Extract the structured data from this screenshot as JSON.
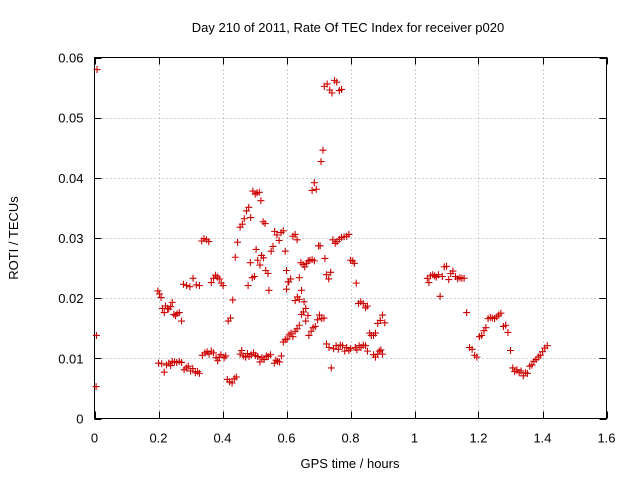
{
  "chart_data": {
    "type": "scatter",
    "title": "Day 210 of 2011, Rate Of TEC Index for receiver p020",
    "xlabel": "GPS time / hours",
    "ylabel": "ROTI / TECUs",
    "xlim": [
      0,
      1.6
    ],
    "ylim": [
      0,
      0.06
    ],
    "xticks": [
      0,
      0.2,
      0.4,
      0.6,
      0.8,
      1,
      1.2,
      1.4,
      1.6
    ],
    "xtick_labels": [
      "0",
      "0.2",
      "0.4",
      "0.6",
      "0.8",
      "1",
      "1.2",
      "1.4",
      "1.6"
    ],
    "yticks": [
      0,
      0.01,
      0.02,
      0.03,
      0.04,
      0.05,
      0.06
    ],
    "ytick_labels": [
      "0",
      "0.01",
      "0.02",
      "0.03",
      "0.04",
      "0.05",
      "0.06"
    ],
    "grid": true,
    "marker": "+",
    "color": "#cc0000",
    "points": [
      [
        0.008,
        0.058
      ],
      [
        0.006,
        0.0138
      ],
      [
        0.005,
        0.0053
      ],
      [
        0.198,
        0.0212
      ],
      [
        0.203,
        0.0207
      ],
      [
        0.208,
        0.0201
      ],
      [
        0.212,
        0.0183
      ],
      [
        0.218,
        0.0176
      ],
      [
        0.222,
        0.0187
      ],
      [
        0.228,
        0.0183
      ],
      [
        0.232,
        0.0182
      ],
      [
        0.238,
        0.0186
      ],
      [
        0.243,
        0.0193
      ],
      [
        0.248,
        0.0173
      ],
      [
        0.253,
        0.0171
      ],
      [
        0.258,
        0.0174
      ],
      [
        0.265,
        0.0176
      ],
      [
        0.272,
        0.0162
      ],
      [
        0.2,
        0.0092
      ],
      [
        0.21,
        0.0091
      ],
      [
        0.218,
        0.0077
      ],
      [
        0.225,
        0.0089
      ],
      [
        0.232,
        0.0092
      ],
      [
        0.238,
        0.0088
      ],
      [
        0.243,
        0.0095
      ],
      [
        0.25,
        0.0094
      ],
      [
        0.257,
        0.0093
      ],
      [
        0.265,
        0.0095
      ],
      [
        0.272,
        0.0093
      ],
      [
        0.28,
        0.0081
      ],
      [
        0.287,
        0.0084
      ],
      [
        0.293,
        0.0087
      ],
      [
        0.3,
        0.0079
      ],
      [
        0.307,
        0.0083
      ],
      [
        0.315,
        0.0076
      ],
      [
        0.322,
        0.0078
      ],
      [
        0.328,
        0.0075
      ],
      [
        0.278,
        0.0223
      ],
      [
        0.288,
        0.0221
      ],
      [
        0.298,
        0.0219
      ],
      [
        0.308,
        0.0233
      ],
      [
        0.318,
        0.0222
      ],
      [
        0.328,
        0.0221
      ],
      [
        0.335,
        0.0295
      ],
      [
        0.342,
        0.0299
      ],
      [
        0.35,
        0.0297
      ],
      [
        0.357,
        0.0294
      ],
      [
        0.337,
        0.0105
      ],
      [
        0.345,
        0.0109
      ],
      [
        0.352,
        0.0111
      ],
      [
        0.358,
        0.0107
      ],
      [
        0.365,
        0.0112
      ],
      [
        0.372,
        0.0109
      ],
      [
        0.38,
        0.0101
      ],
      [
        0.385,
        0.0096
      ],
      [
        0.39,
        0.0102
      ],
      [
        0.395,
        0.0106
      ],
      [
        0.365,
        0.0226
      ],
      [
        0.372,
        0.0233
      ],
      [
        0.378,
        0.0238
      ],
      [
        0.384,
        0.0235
      ],
      [
        0.39,
        0.0232
      ],
      [
        0.396,
        0.0225
      ],
      [
        0.402,
        0.0221
      ],
      [
        0.405,
        0.0101
      ],
      [
        0.41,
        0.0104
      ],
      [
        0.418,
        0.0162
      ],
      [
        0.425,
        0.0167
      ],
      [
        0.432,
        0.0197
      ],
      [
        0.415,
        0.0065
      ],
      [
        0.422,
        0.0061
      ],
      [
        0.43,
        0.0059
      ],
      [
        0.437,
        0.0066
      ],
      [
        0.443,
        0.0069
      ],
      [
        0.44,
        0.0268
      ],
      [
        0.447,
        0.0293
      ],
      [
        0.455,
        0.0318
      ],
      [
        0.462,
        0.0323
      ],
      [
        0.468,
        0.0332
      ],
      [
        0.475,
        0.0345
      ],
      [
        0.482,
        0.0351
      ],
      [
        0.488,
        0.0334
      ],
      [
        0.455,
        0.0107
      ],
      [
        0.46,
        0.0113
      ],
      [
        0.465,
        0.0104
      ],
      [
        0.472,
        0.0102
      ],
      [
        0.478,
        0.0108
      ],
      [
        0.483,
        0.0103
      ],
      [
        0.49,
        0.0106
      ],
      [
        0.497,
        0.0109
      ],
      [
        0.503,
        0.0105
      ],
      [
        0.51,
        0.0103
      ],
      [
        0.517,
        0.0094
      ],
      [
        0.523,
        0.0101
      ],
      [
        0.53,
        0.0098
      ],
      [
        0.537,
        0.0104
      ],
      [
        0.543,
        0.0103
      ],
      [
        0.55,
        0.0106
      ],
      [
        0.48,
        0.0221
      ],
      [
        0.487,
        0.0259
      ],
      [
        0.493,
        0.0234
      ],
      [
        0.5,
        0.0236
      ],
      [
        0.505,
        0.0281
      ],
      [
        0.51,
        0.0263
      ],
      [
        0.517,
        0.0255
      ],
      [
        0.522,
        0.0271
      ],
      [
        0.528,
        0.0267
      ],
      [
        0.535,
        0.0246
      ],
      [
        0.542,
        0.0241
      ],
      [
        0.495,
        0.0378
      ],
      [
        0.502,
        0.0373
      ],
      [
        0.508,
        0.0375
      ],
      [
        0.515,
        0.0376
      ],
      [
        0.52,
        0.0362
      ],
      [
        0.527,
        0.0327
      ],
      [
        0.533,
        0.0324
      ],
      [
        0.545,
        0.0213
      ],
      [
        0.552,
        0.0278
      ],
      [
        0.558,
        0.0286
      ],
      [
        0.563,
        0.0311
      ],
      [
        0.57,
        0.0305
      ],
      [
        0.577,
        0.0296
      ],
      [
        0.583,
        0.0309
      ],
      [
        0.59,
        0.0312
      ],
      [
        0.596,
        0.0278
      ],
      [
        0.6,
        0.0246
      ],
      [
        0.605,
        0.0227
      ],
      [
        0.562,
        0.0092
      ],
      [
        0.567,
        0.0097
      ],
      [
        0.572,
        0.0095
      ],
      [
        0.578,
        0.0094
      ],
      [
        0.584,
        0.0104
      ],
      [
        0.59,
        0.0127
      ],
      [
        0.596,
        0.0131
      ],
      [
        0.602,
        0.0132
      ],
      [
        0.608,
        0.0139
      ],
      [
        0.614,
        0.0142
      ],
      [
        0.62,
        0.0136
      ],
      [
        0.627,
        0.0145
      ],
      [
        0.633,
        0.0149
      ],
      [
        0.64,
        0.0155
      ],
      [
        0.647,
        0.0173
      ],
      [
        0.653,
        0.0177
      ],
      [
        0.66,
        0.0162
      ],
      [
        0.6,
        0.0215
      ],
      [
        0.607,
        0.0227
      ],
      [
        0.613,
        0.0232
      ],
      [
        0.62,
        0.0303
      ],
      [
        0.627,
        0.0306
      ],
      [
        0.633,
        0.0297
      ],
      [
        0.64,
        0.0234
      ],
      [
        0.645,
        0.0259
      ],
      [
        0.652,
        0.0256
      ],
      [
        0.657,
        0.0252
      ],
      [
        0.663,
        0.0258
      ],
      [
        0.668,
        0.0262
      ],
      [
        0.673,
        0.0263
      ],
      [
        0.68,
        0.0264
      ],
      [
        0.687,
        0.0262
      ],
      [
        0.627,
        0.0196
      ],
      [
        0.634,
        0.0202
      ],
      [
        0.64,
        0.0198
      ],
      [
        0.647,
        0.0213
      ],
      [
        0.655,
        0.0194
      ],
      [
        0.66,
        0.0183
      ],
      [
        0.667,
        0.0171
      ],
      [
        0.67,
        0.0138
      ],
      [
        0.677,
        0.0145
      ],
      [
        0.683,
        0.0151
      ],
      [
        0.69,
        0.0153
      ],
      [
        0.697,
        0.0164
      ],
      [
        0.703,
        0.0172
      ],
      [
        0.71,
        0.0166
      ],
      [
        0.717,
        0.0167
      ],
      [
        0.68,
        0.0379
      ],
      [
        0.687,
        0.0392
      ],
      [
        0.693,
        0.0381
      ],
      [
        0.7,
        0.0287
      ],
      [
        0.705,
        0.0287
      ],
      [
        0.708,
        0.0427
      ],
      [
        0.714,
        0.0446
      ],
      [
        0.72,
        0.0266
      ],
      [
        0.725,
        0.0239
      ],
      [
        0.732,
        0.0232
      ],
      [
        0.738,
        0.0243
      ],
      [
        0.718,
        0.0552
      ],
      [
        0.727,
        0.0556
      ],
      [
        0.735,
        0.0546
      ],
      [
        0.742,
        0.0541
      ],
      [
        0.75,
        0.0562
      ],
      [
        0.757,
        0.0559
      ],
      [
        0.765,
        0.0545
      ],
      [
        0.772,
        0.0547
      ],
      [
        0.725,
        0.0124
      ],
      [
        0.733,
        0.0118
      ],
      [
        0.74,
        0.0084
      ],
      [
        0.747,
        0.0116
      ],
      [
        0.755,
        0.0121
      ],
      [
        0.762,
        0.0115
      ],
      [
        0.768,
        0.0122
      ],
      [
        0.775,
        0.0121
      ],
      [
        0.782,
        0.0112
      ],
      [
        0.788,
        0.0118
      ],
      [
        0.795,
        0.0113
      ],
      [
        0.8,
        0.0116
      ],
      [
        0.745,
        0.0297
      ],
      [
        0.752,
        0.0291
      ],
      [
        0.758,
        0.0294
      ],
      [
        0.765,
        0.0298
      ],
      [
        0.772,
        0.0301
      ],
      [
        0.78,
        0.0302
      ],
      [
        0.788,
        0.0303
      ],
      [
        0.795,
        0.0306
      ],
      [
        0.8,
        0.0263
      ],
      [
        0.807,
        0.0262
      ],
      [
        0.812,
        0.0258
      ],
      [
        0.818,
        0.0225
      ],
      [
        0.825,
        0.0191
      ],
      [
        0.832,
        0.0194
      ],
      [
        0.815,
        0.0118
      ],
      [
        0.82,
        0.0114
      ],
      [
        0.827,
        0.0121
      ],
      [
        0.833,
        0.0118
      ],
      [
        0.84,
        0.0122
      ],
      [
        0.847,
        0.0121
      ],
      [
        0.853,
        0.0112
      ],
      [
        0.84,
        0.0191
      ],
      [
        0.847,
        0.0184
      ],
      [
        0.853,
        0.0187
      ],
      [
        0.86,
        0.0142
      ],
      [
        0.865,
        0.0138
      ],
      [
        0.872,
        0.0106
      ],
      [
        0.878,
        0.0102
      ],
      [
        0.885,
        0.0107
      ],
      [
        0.89,
        0.0112
      ],
      [
        0.895,
        0.0114
      ],
      [
        0.9,
        0.0107
      ],
      [
        0.872,
        0.0138
      ],
      [
        0.878,
        0.0142
      ],
      [
        0.885,
        0.0158
      ],
      [
        0.893,
        0.0163
      ],
      [
        0.9,
        0.0172
      ],
      [
        0.907,
        0.0159
      ],
      [
        1.04,
        0.0233
      ],
      [
        1.045,
        0.0226
      ],
      [
        1.05,
        0.0237
      ],
      [
        1.057,
        0.0239
      ],
      [
        1.063,
        0.0237
      ],
      [
        1.068,
        0.0235
      ],
      [
        1.075,
        0.0239
      ],
      [
        1.08,
        0.0203
      ],
      [
        1.087,
        0.0236
      ],
      [
        1.093,
        0.0252
      ],
      [
        1.1,
        0.0253
      ],
      [
        1.107,
        0.0231
      ],
      [
        1.113,
        0.0241
      ],
      [
        1.12,
        0.0245
      ],
      [
        1.128,
        0.0236
      ],
      [
        1.135,
        0.0232
      ],
      [
        1.142,
        0.0234
      ],
      [
        1.148,
        0.0233
      ],
      [
        1.155,
        0.0233
      ],
      [
        1.163,
        0.0176
      ],
      [
        1.172,
        0.0118
      ],
      [
        1.18,
        0.0115
      ],
      [
        1.188,
        0.0105
      ],
      [
        1.195,
        0.0102
      ],
      [
        1.203,
        0.0136
      ],
      [
        1.21,
        0.0138
      ],
      [
        1.217,
        0.0146
      ],
      [
        1.223,
        0.0151
      ],
      [
        1.23,
        0.0166
      ],
      [
        1.237,
        0.0168
      ],
      [
        1.243,
        0.0167
      ],
      [
        1.25,
        0.0166
      ],
      [
        1.257,
        0.0169
      ],
      [
        1.263,
        0.0172
      ],
      [
        1.27,
        0.0175
      ],
      [
        1.278,
        0.0153
      ],
      [
        1.285,
        0.0155
      ],
      [
        1.292,
        0.0143
      ],
      [
        1.3,
        0.0113
      ],
      [
        1.307,
        0.0084
      ],
      [
        1.313,
        0.0078
      ],
      [
        1.32,
        0.0081
      ],
      [
        1.327,
        0.0076
      ],
      [
        1.333,
        0.0079
      ],
      [
        1.34,
        0.0071
      ],
      [
        1.347,
        0.0076
      ],
      [
        1.353,
        0.0075
      ],
      [
        1.36,
        0.0087
      ],
      [
        1.367,
        0.0089
      ],
      [
        1.373,
        0.0095
      ],
      [
        1.38,
        0.0098
      ],
      [
        1.387,
        0.0102
      ],
      [
        1.393,
        0.0105
      ],
      [
        1.4,
        0.0111
      ],
      [
        1.407,
        0.0117
      ],
      [
        1.415,
        0.0121
      ]
    ]
  }
}
